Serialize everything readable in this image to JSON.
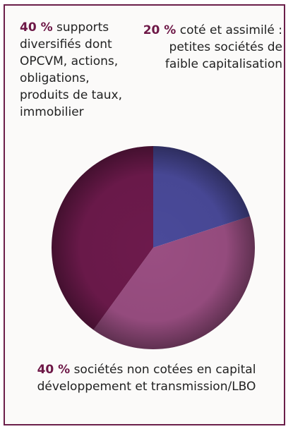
{
  "chart_data": {
    "type": "pie",
    "slices": [
      {
        "value": 20,
        "color": "#4a4a9a",
        "label": "coté et assimilé : petites sociétés de faible capitalisation"
      },
      {
        "value": 40,
        "color": "#9a4e82",
        "label": "sociétés non cotées en capital développement et transmission/LBO"
      },
      {
        "value": 40,
        "color": "#6d1a4c",
        "label": "supports diversifiés dont OPCVM, actions, obligations, produits de taux, immobilier"
      }
    ],
    "start_angle_deg": 0,
    "direction": "clockwise"
  },
  "labels": {
    "top_left": {
      "pct": "40 %",
      "line1": " supports",
      "lines": [
        "diversifiés dont",
        "OPCVM, actions,",
        "obligations,",
        "produits de taux,",
        "immobilier"
      ]
    },
    "top_right": {
      "pct": "20 %",
      "line1": " coté et assimilé :",
      "lines": [
        "petites sociétés de",
        "faible capitalisation"
      ]
    },
    "bottom": {
      "pct": "40 %",
      "line1": " sociétés non cotées en capital",
      "lines": [
        "développement et transmission/LBO"
      ]
    }
  },
  "colors": {
    "border": "#6b1f4a",
    "accent_text": "#6d1746"
  }
}
